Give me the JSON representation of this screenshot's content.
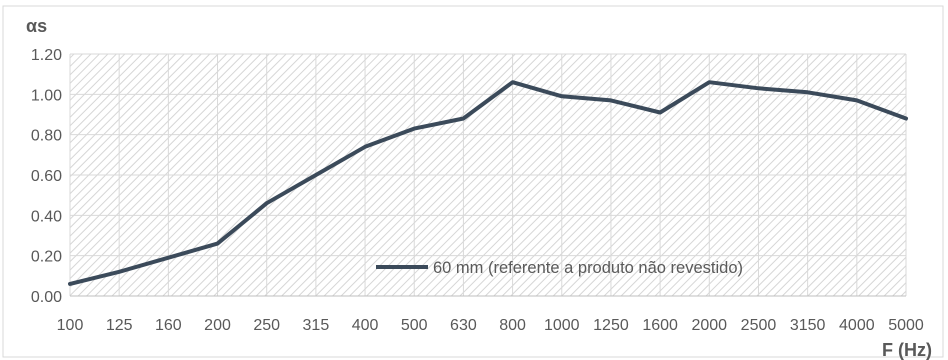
{
  "chart_data": {
    "type": "line",
    "title": "",
    "ylabel": "αs",
    "xlabel": "F (Hz)",
    "categories": [
      "100",
      "125",
      "160",
      "200",
      "250",
      "315",
      "400",
      "500",
      "630",
      "800",
      "1000",
      "1250",
      "1600",
      "2000",
      "2500",
      "3150",
      "4000",
      "5000"
    ],
    "series": [
      {
        "name": "60 mm (referente a produto não revestido)",
        "values": [
          0.06,
          0.12,
          0.19,
          0.26,
          0.46,
          0.6,
          0.74,
          0.83,
          0.88,
          1.06,
          0.99,
          0.97,
          0.91,
          1.06,
          1.03,
          1.01,
          0.97,
          0.88
        ],
        "color": "#3b4a5a"
      }
    ],
    "y_ticks": [
      "0.00",
      "0.20",
      "0.40",
      "0.60",
      "0.80",
      "1.00",
      "1.20"
    ],
    "ylim": [
      0,
      1.2
    ],
    "grid": true,
    "plot_fill": "diagonal-hatch",
    "legend_position": "bottom-right"
  }
}
